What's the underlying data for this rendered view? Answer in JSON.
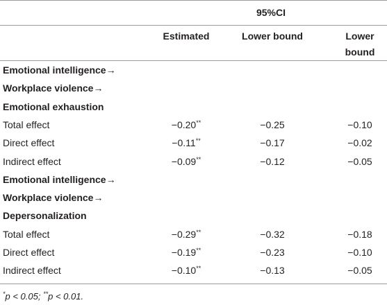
{
  "table": {
    "header": {
      "group": "95%CI",
      "columns": [
        "Estimated",
        "Lower bound",
        "Lower bound"
      ]
    },
    "rows": [
      {
        "label": "Emotional intelligence→",
        "bold": true
      },
      {
        "label": "Workplace violence→",
        "bold": true
      },
      {
        "label": "Emotional exhaustion",
        "bold": true
      },
      {
        "label": "Total effect",
        "cells": [
          {
            "text": "−0.20",
            "sup": "**"
          },
          {
            "text": "−0.25"
          },
          {
            "text": "−0.10"
          }
        ]
      },
      {
        "label": "Direct effect",
        "cells": [
          {
            "text": "−0.11",
            "sup": "**"
          },
          {
            "text": "−0.17"
          },
          {
            "text": "−0.02"
          }
        ]
      },
      {
        "label": "Indirect effect",
        "cells": [
          {
            "text": "−0.09",
            "sup": "**"
          },
          {
            "text": "−0.12"
          },
          {
            "text": "−0.05"
          }
        ]
      },
      {
        "label": "Emotional intelligence→",
        "bold": true
      },
      {
        "label": "Workplace violence→",
        "bold": true
      },
      {
        "label": "Depersonalization",
        "bold": true
      },
      {
        "label": "Total effect",
        "cells": [
          {
            "text": "−0.29",
            "sup": "**"
          },
          {
            "text": "−0.32"
          },
          {
            "text": "−0.18"
          }
        ]
      },
      {
        "label": "Direct effect",
        "cells": [
          {
            "text": "−0.19",
            "sup": "**"
          },
          {
            "text": "−0.23"
          },
          {
            "text": "−0.10"
          }
        ]
      },
      {
        "label": "Indirect effect",
        "cells": [
          {
            "text": "−0.10",
            "sup": "**"
          },
          {
            "text": "−0.13"
          },
          {
            "text": "−0.05"
          }
        ]
      }
    ],
    "footnote": [
      {
        "sup": "*"
      },
      {
        "text": "p < 0.05; "
      },
      {
        "sup": "**"
      },
      {
        "text": "p < 0.01."
      }
    ]
  }
}
